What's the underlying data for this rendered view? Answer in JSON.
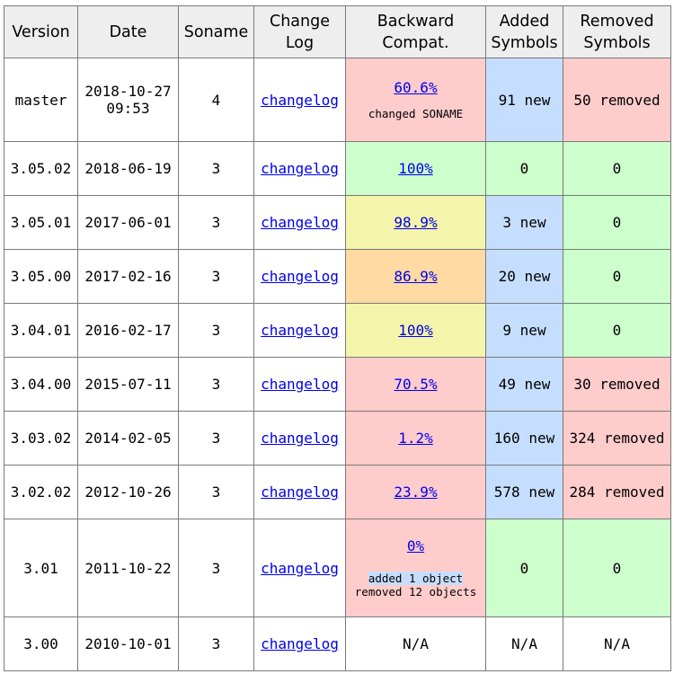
{
  "headers": {
    "version": "Version",
    "date": "Date",
    "soname": "Soname",
    "changelog": "Change Log",
    "compat": "Backward Compat.",
    "added": "Added Symbols",
    "removed": "Removed Symbols"
  },
  "rows": [
    {
      "version": "master",
      "date": "2018-10-27\n09:53",
      "soname": "4",
      "changelog": "changelog",
      "compat": "60.6%",
      "compat_notes": [
        "changed SONAME"
      ],
      "added": "91 new",
      "removed": "50 removed",
      "compat_status": "bad",
      "added_status": "new",
      "removed_status": "bad"
    },
    {
      "version": "3.05.02",
      "date": "2018-06-19",
      "soname": "3",
      "changelog": "changelog",
      "compat": "100%",
      "compat_notes": [],
      "added": "0",
      "removed": "0",
      "compat_status": "ok",
      "added_status": "ok",
      "removed_status": "ok"
    },
    {
      "version": "3.05.01",
      "date": "2017-06-01",
      "soname": "3",
      "changelog": "changelog",
      "compat": "98.9%",
      "compat_notes": [],
      "added": "3 new",
      "removed": "0",
      "compat_status": "warn",
      "added_status": "new",
      "removed_status": "ok"
    },
    {
      "version": "3.05.00",
      "date": "2017-02-16",
      "soname": "3",
      "changelog": "changelog",
      "compat": "86.9%",
      "compat_notes": [],
      "added": "20 new",
      "removed": "0",
      "compat_status": "orange",
      "added_status": "new",
      "removed_status": "ok"
    },
    {
      "version": "3.04.01",
      "date": "2016-02-17",
      "soname": "3",
      "changelog": "changelog",
      "compat": "100%",
      "compat_notes": [],
      "added": "9 new",
      "removed": "0",
      "compat_status": "warn",
      "added_status": "new",
      "removed_status": "ok"
    },
    {
      "version": "3.04.00",
      "date": "2015-07-11",
      "soname": "3",
      "changelog": "changelog",
      "compat": "70.5%",
      "compat_notes": [],
      "added": "49 new",
      "removed": "30 removed",
      "compat_status": "bad",
      "added_status": "new",
      "removed_status": "bad"
    },
    {
      "version": "3.03.02",
      "date": "2014-02-05",
      "soname": "3",
      "changelog": "changelog",
      "compat": "1.2%",
      "compat_notes": [],
      "added": "160 new",
      "removed": "324 removed",
      "compat_status": "bad",
      "added_status": "new",
      "removed_status": "bad"
    },
    {
      "version": "3.02.02",
      "date": "2012-10-26",
      "soname": "3",
      "changelog": "changelog",
      "compat": "23.9%",
      "compat_notes": [],
      "added": "578 new",
      "removed": "284 removed",
      "compat_status": "bad",
      "added_status": "new",
      "removed_status": "bad"
    },
    {
      "version": "3.01",
      "date": "2011-10-22",
      "soname": "3",
      "changelog": "changelog",
      "compat": "0%",
      "compat_notes": [
        "added 1 object",
        "removed 12 objects"
      ],
      "added": "0",
      "removed": "0",
      "compat_status": "bad",
      "added_status": "ok",
      "removed_status": "ok"
    },
    {
      "version": "3.00",
      "date": "2010-10-01",
      "soname": "3",
      "changelog": "changelog",
      "compat": "N/A",
      "compat_notes": [],
      "added": "N/A",
      "removed": "N/A",
      "compat_status": "plain",
      "added_status": "plain",
      "removed_status": "plain"
    }
  ],
  "colors": {
    "ok": "#ccffcc",
    "bad": "#ffcccc",
    "warn": "#f4f4aa",
    "orange": "#ffdaa3",
    "new": "#c6defe",
    "header": "#eeeeee"
  }
}
